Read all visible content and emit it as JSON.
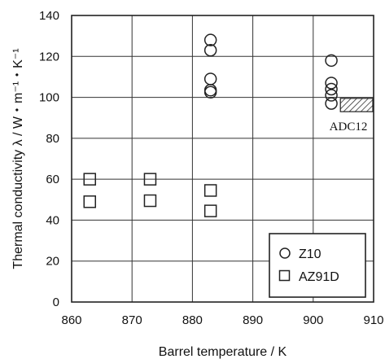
{
  "chart_data": {
    "type": "scatter",
    "xlabel": "Barrel temperature / K",
    "ylabel": "Thermal conductivity  λ / W・m⁻¹・K⁻¹",
    "xlim": [
      860,
      910
    ],
    "ylim": [
      0,
      140
    ],
    "x_ticks": [
      "860",
      "870",
      "880",
      "890",
      "900",
      "910"
    ],
    "y_ticks": [
      "0",
      "20",
      "40",
      "60",
      "80",
      "100",
      "120",
      "140"
    ],
    "grid": true,
    "legend_position": "bottom-right",
    "series": [
      {
        "name": "Z10",
        "marker": "circle",
        "points": [
          [
            883,
            128
          ],
          [
            883,
            123
          ],
          [
            883,
            109
          ],
          [
            883,
            103.5
          ],
          [
            883,
            102.5
          ],
          [
            903,
            118
          ],
          [
            903,
            107
          ],
          [
            903,
            104
          ],
          [
            903,
            101
          ],
          [
            903,
            97
          ]
        ]
      },
      {
        "name": "AZ91D",
        "marker": "square",
        "points": [
          [
            863,
            60
          ],
          [
            863,
            49
          ],
          [
            873,
            60
          ],
          [
            873,
            49.5
          ],
          [
            883,
            54.5
          ],
          [
            883,
            44.5
          ]
        ]
      }
    ],
    "annotation": {
      "text": "ADC12",
      "x_range": [
        904.5,
        910
      ],
      "y_range": [
        93,
        99.5
      ]
    },
    "colors": {
      "marker": "#222222",
      "grid": "#333333",
      "hatch": "#333333"
    }
  }
}
